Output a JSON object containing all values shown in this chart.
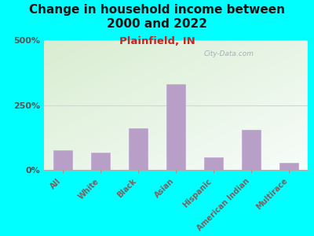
{
  "categories": [
    "All",
    "White",
    "Black",
    "Asian",
    "Hispanic",
    "American Indian",
    "Multirace"
  ],
  "values": [
    75,
    68,
    160,
    330,
    50,
    155,
    28
  ],
  "bar_color": "#b89fc8",
  "bar_edge_color": "#c0a8d0",
  "title_line1": "Change in household income between",
  "title_line2": "2000 and 2022",
  "subtitle": "Plainfield, IN",
  "title_fontsize": 11,
  "subtitle_fontsize": 9.5,
  "ylabel_ticks": [
    "0%",
    "250%",
    "500%"
  ],
  "ytick_values": [
    0,
    250,
    500
  ],
  "ylim": [
    0,
    500
  ],
  "background_outer": "#00ffff",
  "watermark": "City-Data.com",
  "grid_color": "#d0d8d0",
  "tick_label_color": "#7a6060",
  "ytick_label_color": "#555555",
  "title_color": "#111111",
  "subtitle_color": "#cc2222"
}
